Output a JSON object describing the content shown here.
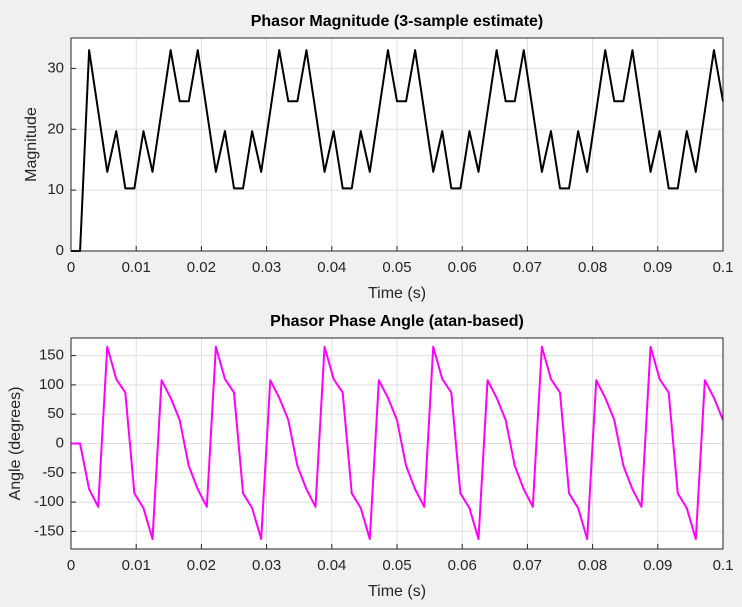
{
  "chart_data": [
    {
      "type": "line",
      "title": "Phasor Magnitude (3-sample estimate)",
      "xlabel": "Time (s)",
      "ylabel": "Magnitude",
      "x": [
        0,
        0.00139,
        0.00278,
        0.00417,
        0.00556,
        0.00694,
        0.00833,
        0.00972,
        0.01111,
        0.0125,
        0.01389,
        0.01528,
        0.01667,
        0.01806,
        0.01944,
        0.02083,
        0.02222,
        0.02361,
        0.025,
        0.02639,
        0.02778,
        0.02917,
        0.03056,
        0.03194,
        0.03333,
        0.03472,
        0.03611,
        0.0375,
        0.03889,
        0.04028,
        0.04167,
        0.04306,
        0.04444,
        0.04583,
        0.04722,
        0.04861,
        0.05,
        0.05139,
        0.05278,
        0.05417,
        0.05556,
        0.05694,
        0.05833,
        0.05972,
        0.06111,
        0.0625,
        0.06389,
        0.06528,
        0.06667,
        0.06806,
        0.06944,
        0.07083,
        0.07222,
        0.07361,
        0.075,
        0.07639,
        0.07778,
        0.07917,
        0.08056,
        0.08194,
        0.08333,
        0.08472,
        0.08611,
        0.0875,
        0.08889,
        0.09028,
        0.09167,
        0.09306,
        0.09444,
        0.09583,
        0.09722,
        0.09861,
        0.1
      ],
      "series": [
        {
          "color": "#000000",
          "values": [
            0,
            0,
            33,
            23,
            13,
            19.7,
            10.3,
            10.3,
            19.7,
            13,
            23,
            33,
            24.6,
            24.6,
            33,
            23,
            13,
            19.7,
            10.3,
            10.3,
            19.7,
            13,
            23,
            33,
            24.6,
            24.6,
            33,
            23,
            13,
            19.7,
            10.3,
            10.3,
            19.7,
            13,
            23,
            33,
            24.6,
            24.6,
            33,
            23,
            13,
            19.7,
            10.3,
            10.3,
            19.7,
            13,
            23,
            33,
            24.6,
            24.6,
            33,
            23,
            13,
            19.7,
            10.3,
            10.3,
            19.7,
            13,
            23,
            33,
            24.6,
            24.6,
            33,
            23,
            13,
            19.7,
            10.3,
            10.3,
            19.7,
            13,
            23,
            33,
            24.6
          ]
        }
      ],
      "xlim": [
        0,
        0.1
      ],
      "ylim": [
        0,
        35
      ],
      "xticks": [
        0,
        0.01,
        0.02,
        0.03,
        0.04,
        0.05,
        0.06,
        0.07,
        0.08,
        0.09,
        0.1
      ],
      "yticks": [
        0,
        10,
        20,
        30
      ],
      "grid": true
    },
    {
      "type": "line",
      "title": "Phasor Phase Angle (atan-based)",
      "xlabel": "Time (s)",
      "ylabel": "Angle (degrees)",
      "x": [
        0,
        0.00139,
        0.00278,
        0.00417,
        0.00556,
        0.00694,
        0.00833,
        0.00972,
        0.01111,
        0.0125,
        0.01389,
        0.01528,
        0.01667,
        0.01806,
        0.01944,
        0.02083,
        0.02222,
        0.02361,
        0.025,
        0.02639,
        0.02778,
        0.02917,
        0.03056,
        0.03194,
        0.03333,
        0.03472,
        0.03611,
        0.0375,
        0.03889,
        0.04028,
        0.04167,
        0.04306,
        0.04444,
        0.04583,
        0.04722,
        0.04861,
        0.05,
        0.05139,
        0.05278,
        0.05417,
        0.05556,
        0.05694,
        0.05833,
        0.05972,
        0.06111,
        0.0625,
        0.06389,
        0.06528,
        0.06667,
        0.06806,
        0.06944,
        0.07083,
        0.07222,
        0.07361,
        0.075,
        0.07639,
        0.07778,
        0.07917,
        0.08056,
        0.08194,
        0.08333,
        0.08472,
        0.08611,
        0.0875,
        0.08889,
        0.09028,
        0.09167,
        0.09306,
        0.09444,
        0.09583,
        0.09722,
        0.09861,
        0.1
      ],
      "series": [
        {
          "color": "#ff00ff",
          "values": [
            0,
            0,
            -78,
            -108,
            165,
            110,
            87,
            -85,
            -110,
            -163,
            108,
            78,
            40,
            -38,
            -78,
            -108,
            165,
            110,
            87,
            -85,
            -110,
            -163,
            108,
            78,
            40,
            -38,
            -78,
            -108,
            165,
            110,
            87,
            -85,
            -110,
            -163,
            108,
            78,
            40,
            -38,
            -78,
            -108,
            165,
            110,
            87,
            -85,
            -110,
            -163,
            108,
            78,
            40,
            -38,
            -78,
            -108,
            165,
            110,
            87,
            -85,
            -110,
            -163,
            108,
            78,
            40,
            -38,
            -78,
            -108,
            165,
            110,
            87,
            -85,
            -110,
            -163,
            108,
            78,
            40
          ]
        }
      ],
      "xlim": [
        0,
        0.1
      ],
      "ylim": [
        -180,
        180
      ],
      "xticks": [
        0,
        0.01,
        0.02,
        0.03,
        0.04,
        0.05,
        0.06,
        0.07,
        0.08,
        0.09,
        0.1
      ],
      "yticks": [
        -150,
        -100,
        -50,
        0,
        50,
        100,
        150
      ],
      "grid": true
    }
  ]
}
